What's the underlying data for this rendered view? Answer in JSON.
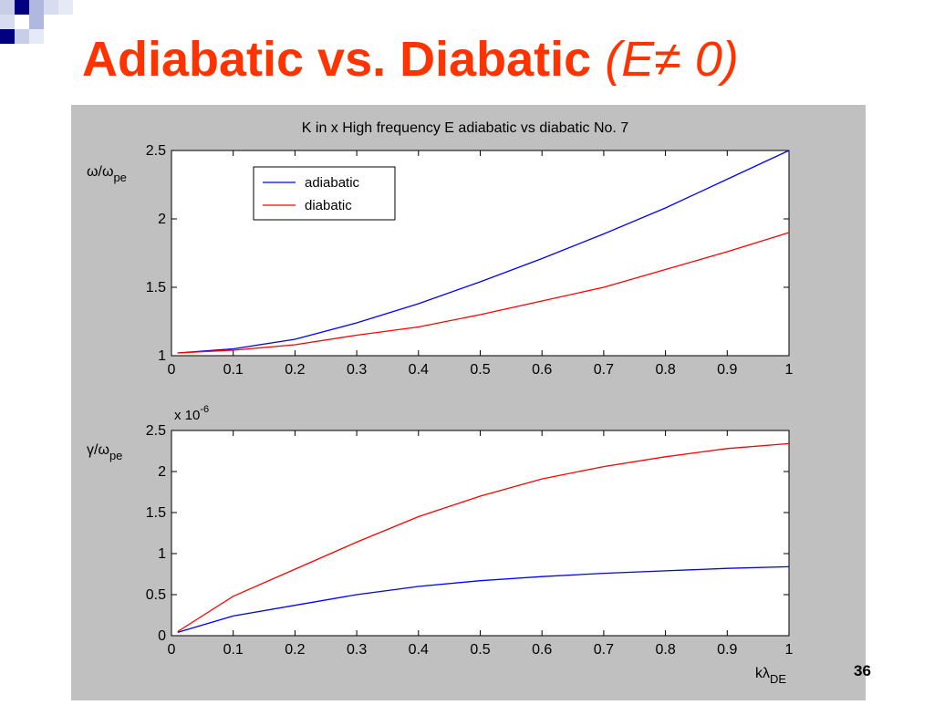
{
  "slide": {
    "title_main": "Adiabatic vs. Diabatic",
    "title_paren": "(E≠ 0)",
    "page_number": "36"
  },
  "colors": {
    "title": "#ff3300",
    "figure_bg": "#c0c0c0",
    "adiabatic": "#0000ff",
    "diabatic": "#ff0000",
    "deco_dark": "#000080",
    "deco_light": "#b0b8e0"
  },
  "chart_data": [
    {
      "type": "line",
      "title": "K in x High frequency E adiabatic vs diabatic  No. 7",
      "ylabel": "ω/ω",
      "ylabel_sub": "pe",
      "xlabel": "",
      "xlim": [
        0,
        1
      ],
      "ylim": [
        1,
        2.5
      ],
      "xticks": [
        "0",
        "0.1",
        "0.2",
        "0.3",
        "0.4",
        "0.5",
        "0.6",
        "0.7",
        "0.8",
        "0.9",
        "1"
      ],
      "yticks": [
        "1",
        "1.5",
        "2",
        "2.5"
      ],
      "legend": "top-left",
      "grid": false,
      "series": [
        {
          "name": "adiabatic",
          "color": "#0000ff",
          "x": [
            0.01,
            0.1,
            0.2,
            0.3,
            0.4,
            0.5,
            0.6,
            0.7,
            0.8,
            0.9,
            1.0
          ],
          "y": [
            1.02,
            1.05,
            1.12,
            1.24,
            1.38,
            1.54,
            1.71,
            1.89,
            2.08,
            2.29,
            2.5
          ]
        },
        {
          "name": "diabatic",
          "color": "#ff0000",
          "x": [
            0.01,
            0.1,
            0.2,
            0.3,
            0.4,
            0.5,
            0.6,
            0.7,
            0.8,
            0.9,
            1.0
          ],
          "y": [
            1.02,
            1.04,
            1.08,
            1.15,
            1.21,
            1.3,
            1.4,
            1.5,
            1.63,
            1.76,
            1.9
          ]
        }
      ]
    },
    {
      "type": "line",
      "title": "",
      "ylabel": "γ/ω",
      "ylabel_sub": "pe",
      "xlabel": "kλ",
      "xlabel_sub": "DE",
      "scale_label": "x 10",
      "scale_exp": "-6",
      "xlim": [
        0,
        1
      ],
      "ylim": [
        0,
        2.5
      ],
      "xticks": [
        "0",
        "0.1",
        "0.2",
        "0.3",
        "0.4",
        "0.5",
        "0.6",
        "0.7",
        "0.8",
        "0.9",
        "1"
      ],
      "yticks": [
        "0",
        "0.5",
        "1",
        "1.5",
        "2",
        "2.5"
      ],
      "grid": false,
      "series": [
        {
          "name": "adiabatic",
          "color": "#0000ff",
          "x": [
            0.01,
            0.1,
            0.2,
            0.3,
            0.4,
            0.5,
            0.6,
            0.7,
            0.8,
            0.9,
            1.0
          ],
          "y": [
            0.04,
            0.24,
            0.37,
            0.5,
            0.6,
            0.67,
            0.72,
            0.76,
            0.79,
            0.82,
            0.84
          ]
        },
        {
          "name": "diabatic",
          "color": "#ff0000",
          "x": [
            0.01,
            0.1,
            0.2,
            0.3,
            0.4,
            0.5,
            0.6,
            0.7,
            0.8,
            0.9,
            1.0
          ],
          "y": [
            0.05,
            0.48,
            0.81,
            1.14,
            1.45,
            1.7,
            1.91,
            2.06,
            2.18,
            2.28,
            2.34
          ]
        }
      ]
    }
  ]
}
